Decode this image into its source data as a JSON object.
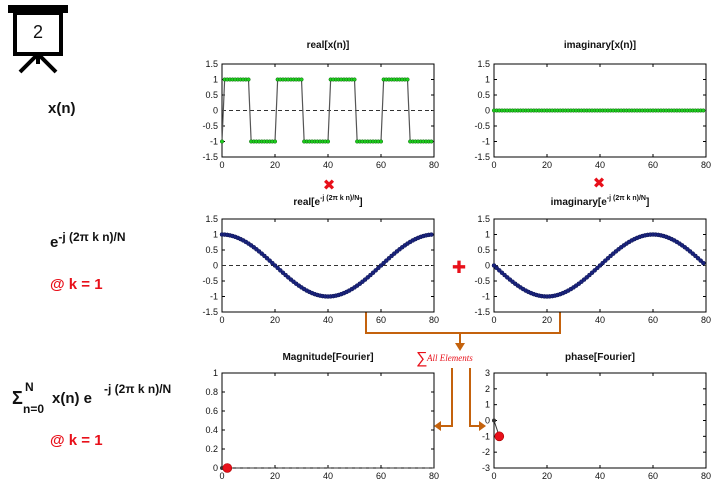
{
  "slide_badge": {
    "number": "2"
  },
  "row_labels": {
    "signal": "x(n)",
    "kernel_base": "e",
    "kernel_exp": "-j (2π k n)/N",
    "kernel_k": "@ k = 1",
    "sum_sigma": "Σ",
    "sum_upper": "N",
    "sum_lower": "n=0",
    "sum_body": "x(n) e",
    "sum_exp": "-j (2π k n)/N",
    "sum_k": "@ k = 1"
  },
  "operators": {
    "multiply": "✖",
    "plus": "✚"
  },
  "sum_note": {
    "sigma": "∑",
    "text": "All Elements"
  },
  "colors": {
    "green_marker": "#1fcf1f",
    "navy_marker": "#1a237e",
    "accent_red": "#e8101a",
    "arrow_orange": "#c4620d",
    "zero_line": "#333333"
  },
  "plots": {
    "real_x": {
      "title": "real[x(n)]"
    },
    "imag_x": {
      "title": "imaginary[x(n)]"
    },
    "real_e": {
      "title_pre": "real[e",
      "title_sup": "-j (2π k n)/N",
      "title_post": "]"
    },
    "imag_e": {
      "title_pre": "imaginary[e",
      "title_sup": "-j (2π k n)/N",
      "title_post": "]"
    },
    "mag": {
      "title": "Magnitude[Fourier]"
    },
    "phase": {
      "title": "phase[Fourier]"
    }
  },
  "chart_data": [
    {
      "id": "real_x",
      "type": "line",
      "title": "real[x(n)]",
      "xlim": [
        0,
        80
      ],
      "ylim": [
        -1.5,
        1.5
      ],
      "xticks": [
        "0",
        "20",
        "40",
        "60",
        "80"
      ],
      "yticks": [
        "1.5",
        "1",
        "0.5",
        "0",
        "-0.5",
        "-1",
        "-1.5"
      ],
      "series": [
        {
          "N": 80,
          "period": 20,
          "high": 1,
          "low": -1,
          "duty_high": 10,
          "phase_start": 1
        }
      ]
    },
    {
      "id": "imag_x",
      "type": "line",
      "title": "imaginary[x(n)]",
      "xlim": [
        0,
        80
      ],
      "ylim": [
        -1.5,
        1.5
      ],
      "xticks": [
        "0",
        "20",
        "40",
        "60",
        "80"
      ],
      "yticks": [
        "1.5",
        "1",
        "0.5",
        "0",
        "-0.5",
        "-1",
        "-1.5"
      ],
      "series": [
        {
          "N": 80,
          "constant": 0
        }
      ]
    },
    {
      "id": "real_e",
      "type": "line",
      "title": "real[e^{-j (2π k n)/N}]",
      "xlim": [
        0,
        80
      ],
      "ylim": [
        -1.5,
        1.5
      ],
      "xticks": [
        "0",
        "20",
        "40",
        "60",
        "80"
      ],
      "yticks": [
        "1.5",
        "1",
        "0.5",
        "0",
        "-0.5",
        "-1",
        "-1.5"
      ],
      "series": [
        {
          "N": 80,
          "k": 1,
          "func": "cos"
        }
      ]
    },
    {
      "id": "imag_e",
      "type": "line",
      "title": "imaginary[e^{-j (2π k n)/N}]",
      "xlim": [
        0,
        80
      ],
      "ylim": [
        -1.5,
        1.5
      ],
      "xticks": [
        "0",
        "20",
        "40",
        "60",
        "80"
      ],
      "yticks": [
        "1.5",
        "1",
        "0.5",
        "0",
        "-0.5",
        "-1",
        "-1.5"
      ],
      "series": [
        {
          "N": 80,
          "k": 1,
          "func": "-sin"
        }
      ]
    },
    {
      "id": "mag",
      "type": "scatter",
      "title": "Magnitude[Fourier]",
      "xlim": [
        0,
        80
      ],
      "ylim": [
        0,
        1
      ],
      "xticks": [
        "0",
        "20",
        "40",
        "60",
        "80"
      ],
      "yticks": [
        "1",
        "0.8",
        "0.6",
        "0.4",
        "0.2",
        "0"
      ],
      "series": [
        {
          "x": [
            0,
            2
          ],
          "y": [
            0,
            0
          ],
          "highlight": {
            "x": 2,
            "y": 0
          }
        }
      ]
    },
    {
      "id": "phase",
      "type": "scatter",
      "title": "phase[Fourier]",
      "xlim": [
        0,
        80
      ],
      "ylim": [
        -3,
        3
      ],
      "xticks": [
        "0",
        "20",
        "40",
        "60",
        "80"
      ],
      "yticks": [
        "3",
        "2",
        "1",
        "0",
        "-1",
        "-2",
        "-3"
      ],
      "series": [
        {
          "x": [
            0,
            2
          ],
          "y": [
            0,
            -1
          ],
          "highlight": {
            "x": 2,
            "y": -1
          }
        }
      ]
    }
  ]
}
